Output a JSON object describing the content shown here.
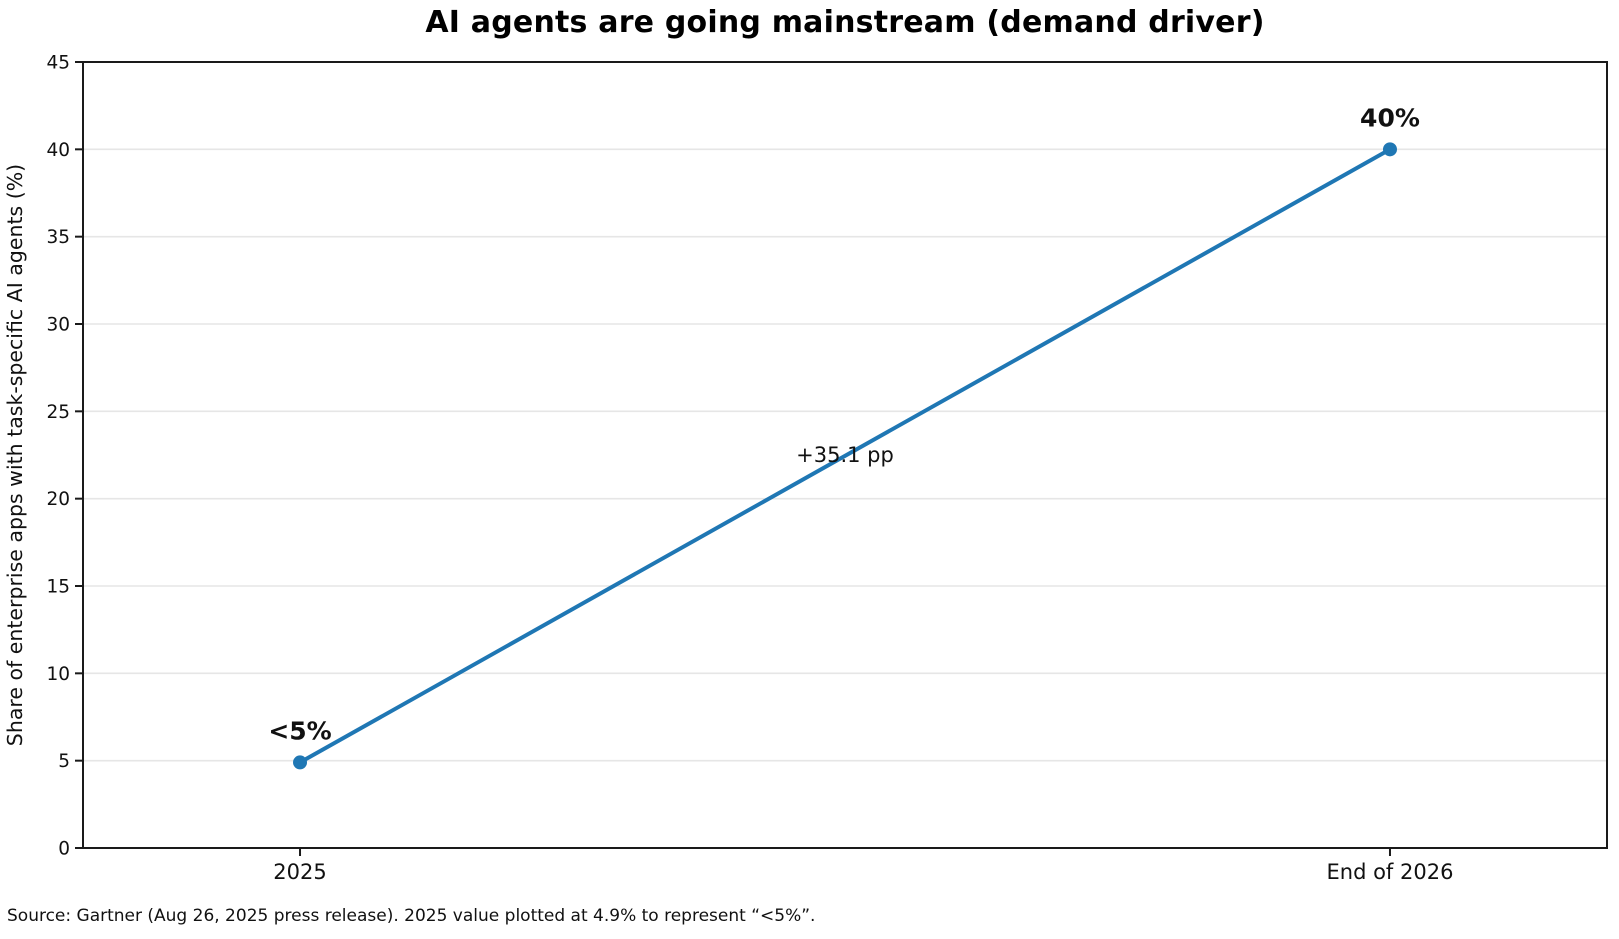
{
  "figure": {
    "title": "AI agents are going mainstream (demand driver)",
    "source_note": "Source: Gartner (Aug 26, 2025 press release). 2025 value plotted at 4.9% to represent “<5%”."
  },
  "chart_data": {
    "type": "line",
    "title": "AI agents are going mainstream (demand driver)",
    "categories": [
      "2025",
      "End of 2026"
    ],
    "series": [
      {
        "name": "Share of enterprise apps with task-specific AI agents",
        "values": [
          4.9,
          40
        ]
      }
    ],
    "point_labels": [
      "<5%",
      "40%"
    ],
    "annotation": "+35.1 pp",
    "xlabel": "",
    "ylabel": "Share of enterprise apps with task-specific AI agents (%)",
    "ylim": [
      0,
      45
    ],
    "yticks": [
      0,
      5,
      10,
      15,
      20,
      25,
      30,
      35,
      40,
      45
    ],
    "grid": "horizontal",
    "legend": "none",
    "line_color": "#1f77b4",
    "marker": "circle"
  }
}
